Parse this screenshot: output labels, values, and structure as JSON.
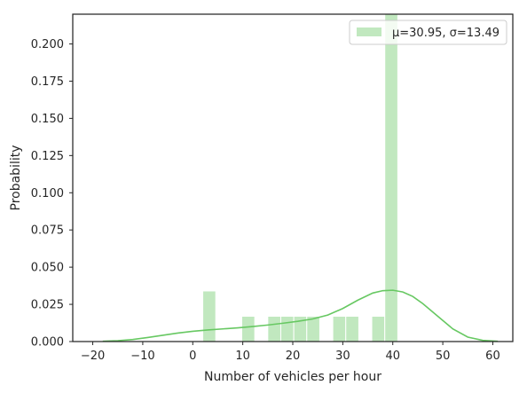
{
  "chart_data": {
    "type": "bar",
    "xlabel": "Number of vehicles per hour",
    "ylabel": "Probability",
    "xlim": [
      -24,
      64
    ],
    "ylim": [
      0,
      0.22
    ],
    "xticks": [
      "−20",
      "−10",
      "0",
      "10",
      "20",
      "30",
      "40",
      "50",
      "60"
    ],
    "xtick_values": [
      -20,
      -10,
      0,
      10,
      20,
      30,
      40,
      50,
      60
    ],
    "yticks": [
      "0.000",
      "0.025",
      "0.050",
      "0.075",
      "0.100",
      "0.125",
      "0.150",
      "0.175",
      "0.200"
    ],
    "ytick_values": [
      0,
      0.025,
      0.05,
      0.075,
      0.1,
      0.125,
      0.15,
      0.175,
      0.2
    ],
    "bin_width": 2.6,
    "histogram": [
      {
        "x0": 2.0,
        "value": 0.034
      },
      {
        "x0": 9.8,
        "value": 0.017
      },
      {
        "x0": 15.0,
        "value": 0.017
      },
      {
        "x0": 17.6,
        "value": 0.017
      },
      {
        "x0": 20.2,
        "value": 0.017
      },
      {
        "x0": 22.8,
        "value": 0.017
      },
      {
        "x0": 28.0,
        "value": 0.017
      },
      {
        "x0": 30.6,
        "value": 0.017
      },
      {
        "x0": 35.8,
        "value": 0.017
      },
      {
        "x0": 38.4,
        "value": 0.222
      }
    ],
    "kde": {
      "x": [
        -18,
        -15,
        -12,
        -9,
        -6,
        -3,
        0,
        3,
        6,
        9,
        12,
        15,
        18,
        21,
        24,
        27,
        30,
        33,
        36,
        38,
        40,
        42,
        44,
        46,
        49,
        52,
        55,
        58,
        61
      ],
      "y": [
        0.0002,
        0.0006,
        0.0014,
        0.0027,
        0.0042,
        0.0057,
        0.0069,
        0.0078,
        0.0085,
        0.0092,
        0.0101,
        0.0111,
        0.0123,
        0.0136,
        0.0152,
        0.0178,
        0.0222,
        0.0278,
        0.0326,
        0.0342,
        0.0345,
        0.0333,
        0.0303,
        0.0255,
        0.017,
        0.0085,
        0.003,
        0.0008,
        0.0002
      ]
    },
    "legend": {
      "label": "μ=30.95, σ=13.49",
      "position": "top-right"
    },
    "grid": false,
    "colors": {
      "bar": "#c1e8bf",
      "line": "#67c862",
      "axes": "#262626"
    }
  }
}
